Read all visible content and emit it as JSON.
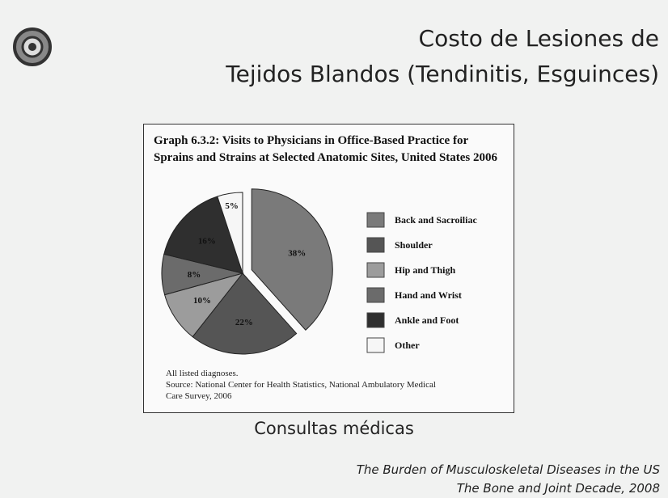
{
  "slide": {
    "title_lines": [
      "Costo de Lesiones de",
      "Tejidos Blandos (Tendinitis, Esguinces)"
    ],
    "caption": "Consultas médicas",
    "citation_lines": [
      "The Burden of Musculoskeletal Diseases in the US",
      "The Bone and Joint Decade, 2008"
    ]
  },
  "chart_data": {
    "type": "pie",
    "title": "Graph 6.3.2: Visits to Physicians in Office-Based Practice for Sprains and Strains at Selected Anatomic Sites, United States 2006",
    "categories": [
      "Back and Sacroiliac",
      "Shoulder",
      "Hip and Thigh",
      "Hand and Wrist",
      "Ankle and Foot",
      "Other"
    ],
    "values": [
      38,
      22,
      10,
      8,
      16,
      5
    ],
    "value_labels": [
      "38%",
      "22%",
      "10%",
      "8%",
      "16%",
      "5%"
    ],
    "colors": [
      "#7a7a7a",
      "#555555",
      "#9c9c9c",
      "#6b6b6b",
      "#2f2f2f",
      "#f6f6f6"
    ],
    "note": "All listed diagnoses.",
    "source": "Source: National Center for Health Statistics, National Ambulatory Medical Care Survey, 2006"
  }
}
